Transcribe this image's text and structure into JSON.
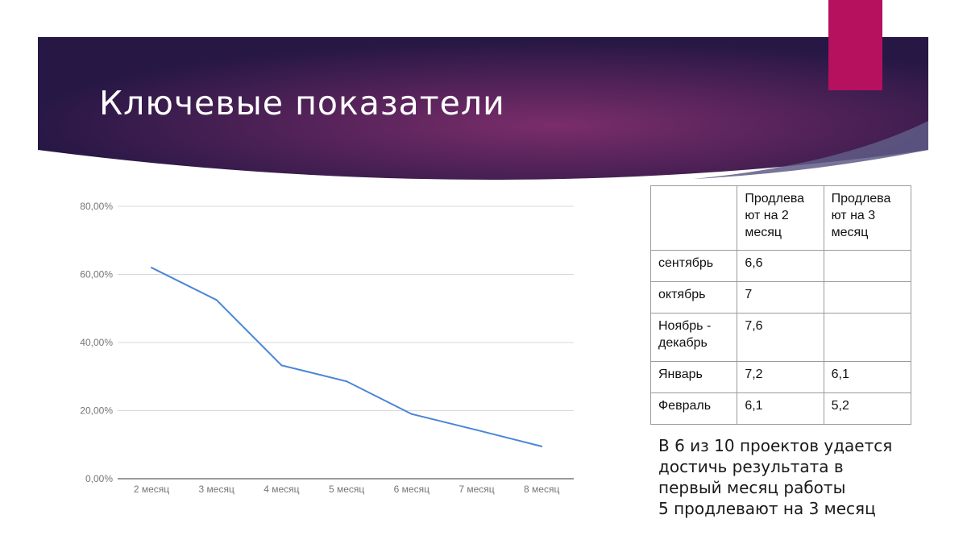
{
  "slide": {
    "title": "Ключевые показатели",
    "colors": {
      "banner_dark": "#2b1a4b",
      "banner_glow": "#6b2c66",
      "accent": "#b5115f",
      "line": "#4a86d6"
    }
  },
  "table": {
    "headers": [
      "",
      "Продлева ют на 2 месяц",
      "Продлева ют на 3 месяц"
    ],
    "header_lines": [
      [],
      [
        "Продлева",
        "ют на 2",
        "месяц"
      ],
      [
        "Продлева",
        "ют на 3",
        "месяц"
      ]
    ],
    "rows": [
      {
        "label": "сентябрь",
        "label_lines": [
          "сентябрь"
        ],
        "m2": "6,6",
        "m3": ""
      },
      {
        "label": "октябрь",
        "label_lines": [
          "октябрь"
        ],
        "m2": "7",
        "m3": ""
      },
      {
        "label": "Ноябрь - декабрь",
        "label_lines": [
          "Ноябрь -",
          "декабрь"
        ],
        "m2": "7,6",
        "m3": ""
      },
      {
        "label": "Январь",
        "label_lines": [
          "Январь"
        ],
        "m2": "7,2",
        "m3": "6,1"
      },
      {
        "label": "Февраль",
        "label_lines": [
          "Февраль"
        ],
        "m2": "6,1",
        "m3": "5,2"
      }
    ]
  },
  "note": {
    "lines": [
      "В 6 из 10 проектов удается",
      "достичь результата в",
      "первый месяц работы",
      "5 продлевают на 3 месяц"
    ]
  },
  "chart_data": {
    "type": "line",
    "categories": [
      "2 месяц",
      "3 месяц",
      "4 месяц",
      "5 месяц",
      "6 месяц",
      "7 месяц",
      "8 месяц"
    ],
    "series": [
      {
        "values": [
          62.0,
          52.5,
          33.3,
          28.6,
          19.0,
          14.3,
          9.5
        ]
      }
    ],
    "y_ticks": [
      "0,00%",
      "20,00%",
      "40,00%",
      "60,00%",
      "80,00%"
    ],
    "ylim": [
      0,
      80
    ],
    "grid": true,
    "legend": "none",
    "title": "",
    "xlabel": "",
    "ylabel": ""
  }
}
